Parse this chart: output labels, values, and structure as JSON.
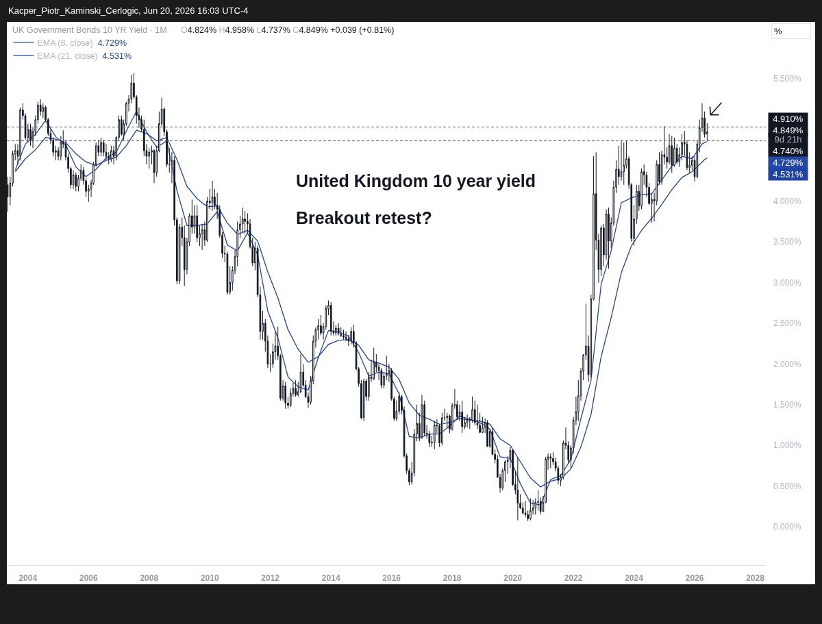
{
  "chart_data": {
    "type": "candlestick",
    "title": "UK Government Bonds 10 YR Yield · 1M",
    "x": [
      "2003-05",
      "2003-06",
      "2003-07",
      "2003-08",
      "2003-09",
      "2003-10",
      "2003-11",
      "2003-12",
      "2004-01",
      "2004-02",
      "2004-03",
      "2004-04",
      "2004-05",
      "2004-06",
      "2004-07",
      "2004-08",
      "2004-09",
      "2004-10",
      "2004-11",
      "2004-12",
      "2005-01",
      "2005-02",
      "2005-03",
      "2005-04",
      "2005-05",
      "2005-06",
      "2005-07",
      "2005-08",
      "2005-09",
      "2005-10",
      "2005-11",
      "2005-12",
      "2006-01",
      "2006-02",
      "2006-03",
      "2006-04",
      "2006-05",
      "2006-06",
      "2006-07",
      "2006-08",
      "2006-09",
      "2006-10",
      "2006-11",
      "2006-12",
      "2007-01",
      "2007-02",
      "2007-03",
      "2007-04",
      "2007-05",
      "2007-06",
      "2007-07",
      "2007-08",
      "2007-09",
      "2007-10",
      "2007-11",
      "2007-12",
      "2008-01",
      "2008-02",
      "2008-03",
      "2008-04",
      "2008-05",
      "2008-06",
      "2008-07",
      "2008-08",
      "2008-09",
      "2008-10",
      "2008-11",
      "2008-12",
      "2009-01",
      "2009-02",
      "2009-03",
      "2009-04",
      "2009-05",
      "2009-06",
      "2009-07",
      "2009-08",
      "2009-09",
      "2009-10",
      "2009-11",
      "2009-12",
      "2010-01",
      "2010-02",
      "2010-03",
      "2010-04",
      "2010-05",
      "2010-06",
      "2010-07",
      "2010-08",
      "2010-09",
      "2010-10",
      "2010-11",
      "2010-12",
      "2011-01",
      "2011-02",
      "2011-03",
      "2011-04",
      "2011-05",
      "2011-06",
      "2011-07",
      "2011-08",
      "2011-09",
      "2011-10",
      "2011-11",
      "2011-12",
      "2012-01",
      "2012-02",
      "2012-03",
      "2012-04",
      "2012-05",
      "2012-06",
      "2012-07",
      "2012-08",
      "2012-09",
      "2012-10",
      "2012-11",
      "2012-12",
      "2013-01",
      "2013-02",
      "2013-03",
      "2013-04",
      "2013-05",
      "2013-06",
      "2013-07",
      "2013-08",
      "2013-09",
      "2013-10",
      "2013-11",
      "2013-12",
      "2014-01",
      "2014-02",
      "2014-03",
      "2014-04",
      "2014-05",
      "2014-06",
      "2014-07",
      "2014-08",
      "2014-09",
      "2014-10",
      "2014-11",
      "2014-12",
      "2015-01",
      "2015-02",
      "2015-03",
      "2015-04",
      "2015-05",
      "2015-06",
      "2015-07",
      "2015-08",
      "2015-09",
      "2015-10",
      "2015-11",
      "2015-12",
      "2016-01",
      "2016-02",
      "2016-03",
      "2016-04",
      "2016-05",
      "2016-06",
      "2016-07",
      "2016-08",
      "2016-09",
      "2016-10",
      "2016-11",
      "2016-12",
      "2017-01",
      "2017-02",
      "2017-03",
      "2017-04",
      "2017-05",
      "2017-06",
      "2017-07",
      "2017-08",
      "2017-09",
      "2017-10",
      "2017-11",
      "2017-12",
      "2018-01",
      "2018-02",
      "2018-03",
      "2018-04",
      "2018-05",
      "2018-06",
      "2018-07",
      "2018-08",
      "2018-09",
      "2018-10",
      "2018-11",
      "2018-12",
      "2019-01",
      "2019-02",
      "2019-03",
      "2019-04",
      "2019-05",
      "2019-06",
      "2019-07",
      "2019-08",
      "2019-09",
      "2019-10",
      "2019-11",
      "2019-12",
      "2020-01",
      "2020-02",
      "2020-03",
      "2020-04",
      "2020-05",
      "2020-06",
      "2020-07",
      "2020-08",
      "2020-09",
      "2020-10",
      "2020-11",
      "2020-12",
      "2021-01",
      "2021-02",
      "2021-03",
      "2021-04",
      "2021-05",
      "2021-06",
      "2021-07",
      "2021-08",
      "2021-09",
      "2021-10",
      "2021-11",
      "2021-12",
      "2022-01",
      "2022-02",
      "2022-03",
      "2022-04",
      "2022-05",
      "2022-06",
      "2022-07",
      "2022-08",
      "2022-09",
      "2022-10",
      "2022-11",
      "2022-12",
      "2023-01",
      "2023-02",
      "2023-03",
      "2023-04",
      "2023-05",
      "2023-06",
      "2023-07",
      "2023-08",
      "2023-09",
      "2023-10",
      "2023-11",
      "2023-12",
      "2024-01",
      "2024-02",
      "2024-03",
      "2024-04",
      "2024-05",
      "2024-06",
      "2024-07",
      "2024-08",
      "2024-09",
      "2024-10",
      "2024-11",
      "2024-12",
      "2025-01",
      "2025-02",
      "2025-03",
      "2025-04",
      "2025-05",
      "2025-06",
      "2025-07",
      "2025-08",
      "2025-09",
      "2025-10",
      "2025-11",
      "2025-12",
      "2026-01",
      "2026-02",
      "2026-03",
      "2026-04",
      "2026-05",
      "2026-06"
    ],
    "ohlc": [
      [
        4.2,
        4.3,
        3.87,
        4.05
      ],
      [
        4.05,
        4.3,
        3.95,
        4.22
      ],
      [
        4.22,
        4.62,
        4.18,
        4.58
      ],
      [
        4.58,
        4.7,
        4.5,
        4.62
      ],
      [
        4.62,
        4.7,
        4.45,
        4.55
      ],
      [
        4.55,
        5.15,
        4.5,
        5.12
      ],
      [
        5.12,
        5.2,
        5.0,
        5.05
      ],
      [
        5.05,
        5.08,
        4.75,
        4.78
      ],
      [
        4.78,
        4.95,
        4.72,
        4.88
      ],
      [
        4.88,
        4.95,
        4.68,
        4.75
      ],
      [
        4.75,
        4.9,
        4.65,
        4.85
      ],
      [
        4.85,
        5.05,
        4.8,
        5.0
      ],
      [
        5.0,
        5.22,
        4.95,
        5.18
      ],
      [
        5.18,
        5.25,
        5.05,
        5.1
      ],
      [
        5.1,
        5.2,
        5.02,
        5.15
      ],
      [
        5.15,
        5.17,
        4.97,
        5.0
      ],
      [
        5.0,
        5.02,
        4.8,
        4.83
      ],
      [
        4.83,
        4.88,
        4.7,
        4.75
      ],
      [
        4.75,
        4.78,
        4.55,
        4.6
      ],
      [
        4.6,
        4.68,
        4.5,
        4.62
      ],
      [
        4.62,
        4.66,
        4.5,
        4.55
      ],
      [
        4.55,
        4.8,
        4.5,
        4.72
      ],
      [
        4.72,
        4.87,
        4.65,
        4.7
      ],
      [
        4.7,
        4.75,
        4.5,
        4.54
      ],
      [
        4.54,
        4.58,
        4.35,
        4.4
      ],
      [
        4.4,
        4.42,
        4.15,
        4.2
      ],
      [
        4.2,
        4.38,
        4.15,
        4.32
      ],
      [
        4.32,
        4.35,
        4.12,
        4.18
      ],
      [
        4.18,
        4.32,
        4.12,
        4.28
      ],
      [
        4.28,
        4.45,
        4.25,
        4.38
      ],
      [
        4.38,
        4.42,
        4.2,
        4.25
      ],
      [
        4.25,
        4.28,
        4.05,
        4.12
      ],
      [
        4.12,
        4.2,
        3.99,
        4.15
      ],
      [
        4.15,
        4.26,
        4.05,
        4.22
      ],
      [
        4.22,
        4.48,
        4.2,
        4.45
      ],
      [
        4.45,
        4.72,
        4.42,
        4.68
      ],
      [
        4.68,
        4.75,
        4.55,
        4.6
      ],
      [
        4.6,
        4.78,
        4.55,
        4.72
      ],
      [
        4.72,
        4.75,
        4.55,
        4.6
      ],
      [
        4.6,
        4.7,
        4.5,
        4.55
      ],
      [
        4.55,
        4.6,
        4.45,
        4.52
      ],
      [
        4.52,
        4.68,
        4.48,
        4.62
      ],
      [
        4.62,
        4.68,
        4.45,
        4.55
      ],
      [
        4.55,
        4.8,
        4.5,
        4.78
      ],
      [
        4.78,
        5.05,
        4.75,
        5.0
      ],
      [
        5.0,
        5.05,
        4.8,
        4.82
      ],
      [
        4.82,
        5.0,
        4.75,
        4.95
      ],
      [
        4.95,
        5.22,
        4.92,
        5.2
      ],
      [
        5.2,
        5.3,
        5.1,
        5.25
      ],
      [
        5.25,
        5.55,
        5.2,
        5.45
      ],
      [
        5.45,
        5.57,
        5.25,
        5.28
      ],
      [
        5.28,
        5.3,
        4.95,
        5.05
      ],
      [
        5.05,
        5.15,
        4.9,
        5.0
      ],
      [
        5.0,
        5.05,
        4.85,
        4.88
      ],
      [
        4.88,
        5.0,
        4.55,
        4.62
      ],
      [
        4.62,
        4.7,
        4.45,
        4.55
      ],
      [
        4.55,
        4.65,
        4.4,
        4.6
      ],
      [
        4.6,
        4.68,
        4.45,
        4.62
      ],
      [
        4.62,
        4.64,
        4.22,
        4.35
      ],
      [
        4.35,
        4.68,
        4.3,
        4.62
      ],
      [
        4.62,
        5.1,
        4.6,
        4.95
      ],
      [
        4.95,
        5.27,
        4.92,
        5.13
      ],
      [
        5.13,
        5.15,
        4.8,
        4.85
      ],
      [
        4.85,
        4.88,
        4.42,
        4.45
      ],
      [
        4.45,
        4.65,
        4.35,
        4.45
      ],
      [
        4.45,
        4.6,
        4.22,
        4.5
      ],
      [
        4.5,
        4.55,
        3.7,
        3.77
      ],
      [
        3.77,
        3.8,
        2.98,
        3.02
      ],
      [
        3.02,
        3.72,
        2.98,
        3.68
      ],
      [
        3.68,
        3.8,
        3.45,
        3.55
      ],
      [
        3.55,
        3.7,
        2.96,
        3.16
      ],
      [
        3.16,
        3.55,
        3.1,
        3.5
      ],
      [
        3.5,
        3.85,
        3.45,
        3.82
      ],
      [
        3.82,
        4.02,
        3.6,
        3.68
      ],
      [
        3.68,
        3.95,
        3.6,
        3.82
      ],
      [
        3.82,
        3.95,
        3.5,
        3.55
      ],
      [
        3.55,
        3.7,
        3.45,
        3.6
      ],
      [
        3.6,
        3.72,
        3.4,
        3.65
      ],
      [
        3.65,
        3.75,
        3.45,
        3.52
      ],
      [
        3.52,
        4.05,
        3.5,
        4.0
      ],
      [
        4.0,
        4.15,
        3.9,
        3.98
      ],
      [
        3.98,
        4.25,
        3.88,
        4.05
      ],
      [
        4.05,
        4.15,
        3.9,
        3.95
      ],
      [
        3.95,
        4.1,
        3.78,
        3.9
      ],
      [
        3.9,
        3.95,
        3.55,
        3.58
      ],
      [
        3.58,
        3.62,
        3.3,
        3.36
      ],
      [
        3.36,
        3.45,
        3.25,
        3.35
      ],
      [
        3.35,
        3.38,
        2.85,
        2.88
      ],
      [
        2.88,
        3.2,
        2.85,
        3.0
      ],
      [
        3.0,
        3.2,
        2.9,
        3.15
      ],
      [
        3.15,
        3.4,
        3.1,
        3.32
      ],
      [
        3.32,
        3.75,
        3.2,
        3.65
      ],
      [
        3.65,
        3.82,
        3.55,
        3.72
      ],
      [
        3.72,
        3.92,
        3.62,
        3.78
      ],
      [
        3.78,
        3.88,
        3.6,
        3.75
      ],
      [
        3.75,
        3.85,
        3.6,
        3.72
      ],
      [
        3.72,
        3.78,
        3.42,
        3.44
      ],
      [
        3.44,
        3.55,
        3.2,
        3.24
      ],
      [
        3.24,
        3.5,
        3.15,
        3.42
      ],
      [
        3.42,
        3.45,
        2.82,
        2.85
      ],
      [
        2.85,
        2.95,
        2.3,
        2.4
      ],
      [
        2.4,
        2.65,
        2.3,
        2.5
      ],
      [
        2.5,
        2.55,
        2.15,
        2.28
      ],
      [
        2.28,
        2.35,
        1.95,
        2.0
      ],
      [
        2.0,
        2.12,
        1.9,
        2.0
      ],
      [
        2.0,
        2.25,
        1.95,
        2.15
      ],
      [
        2.15,
        2.4,
        2.05,
        2.22
      ],
      [
        2.22,
        2.46,
        2.05,
        2.1
      ],
      [
        2.1,
        2.12,
        1.55,
        1.58
      ],
      [
        1.58,
        1.8,
        1.55,
        1.73
      ],
      [
        1.73,
        1.78,
        1.45,
        1.52
      ],
      [
        1.52,
        1.6,
        1.45,
        1.49
      ],
      [
        1.49,
        1.7,
        1.47,
        1.64
      ],
      [
        1.64,
        1.77,
        1.6,
        1.7
      ],
      [
        1.7,
        1.8,
        1.6,
        1.62
      ],
      [
        1.62,
        1.78,
        1.6,
        1.66
      ],
      [
        1.66,
        2.12,
        1.64,
        1.9
      ],
      [
        1.9,
        2.0,
        1.72,
        1.74
      ],
      [
        1.74,
        1.8,
        1.58,
        1.6
      ],
      [
        1.6,
        1.65,
        1.46,
        1.53
      ],
      [
        1.53,
        1.85,
        1.5,
        1.79
      ],
      [
        1.79,
        2.35,
        1.75,
        2.28
      ],
      [
        2.28,
        2.45,
        2.2,
        2.42
      ],
      [
        2.42,
        2.55,
        2.3,
        2.47
      ],
      [
        2.47,
        2.6,
        2.35,
        2.38
      ],
      [
        2.38,
        2.5,
        2.3,
        2.46
      ],
      [
        2.46,
        2.72,
        2.42,
        2.68
      ],
      [
        2.68,
        2.78,
        2.6,
        2.72
      ],
      [
        2.72,
        2.76,
        2.35,
        2.4
      ],
      [
        2.4,
        2.52,
        2.35,
        2.38
      ],
      [
        2.38,
        2.48,
        2.34,
        2.44
      ],
      [
        2.44,
        2.5,
        2.35,
        2.37
      ],
      [
        2.37,
        2.45,
        2.33,
        2.35
      ],
      [
        2.35,
        2.42,
        2.3,
        2.33
      ],
      [
        2.33,
        2.4,
        2.28,
        2.31
      ],
      [
        2.31,
        2.36,
        2.22,
        2.28
      ],
      [
        2.28,
        2.45,
        2.24,
        2.4
      ],
      [
        2.4,
        2.48,
        2.2,
        2.26
      ],
      [
        2.26,
        2.28,
        1.92,
        1.94
      ],
      [
        1.94,
        1.96,
        1.72,
        1.76
      ],
      [
        1.76,
        1.8,
        1.32,
        1.34
      ],
      [
        1.34,
        1.82,
        1.3,
        1.79
      ],
      [
        1.79,
        1.82,
        1.55,
        1.6
      ],
      [
        1.6,
        1.9,
        1.55,
        1.84
      ],
      [
        1.84,
        2.05,
        1.78,
        1.82
      ],
      [
        1.82,
        2.2,
        1.8,
        2.02
      ],
      [
        2.02,
        2.12,
        1.9,
        1.96
      ],
      [
        1.96,
        2.0,
        1.8,
        1.92
      ],
      [
        1.92,
        1.95,
        1.7,
        1.74
      ],
      [
        1.74,
        1.9,
        1.7,
        1.85
      ],
      [
        1.85,
        2.1,
        1.8,
        1.88
      ],
      [
        1.88,
        2.0,
        1.78,
        1.92
      ],
      [
        1.92,
        1.95,
        1.55,
        1.57
      ],
      [
        1.57,
        1.6,
        1.3,
        1.33
      ],
      [
        1.33,
        1.55,
        1.3,
        1.42
      ],
      [
        1.42,
        1.65,
        1.38,
        1.6
      ],
      [
        1.6,
        1.62,
        1.38,
        1.43
      ],
      [
        1.43,
        1.48,
        0.85,
        0.87
      ],
      [
        0.87,
        0.9,
        0.65,
        0.69
      ],
      [
        0.69,
        0.72,
        0.51,
        0.55
      ],
      [
        0.55,
        0.8,
        0.52,
        0.66
      ],
      [
        0.66,
        1.2,
        0.62,
        1.14
      ],
      [
        1.14,
        1.5,
        1.05,
        1.27
      ],
      [
        1.27,
        1.4,
        1.05,
        1.1
      ],
      [
        1.1,
        1.62,
        1.08,
        1.5
      ],
      [
        1.5,
        1.55,
        1.12,
        1.15
      ],
      [
        1.15,
        1.25,
        1.08,
        1.14
      ],
      [
        1.14,
        1.18,
        0.98,
        1.03
      ],
      [
        1.03,
        1.12,
        0.98,
        1.04
      ],
      [
        1.04,
        1.3,
        0.95,
        1.25
      ],
      [
        1.25,
        1.32,
        1.15,
        1.24
      ],
      [
        1.24,
        1.26,
        0.98,
        1.03
      ],
      [
        1.03,
        1.4,
        1.0,
        1.34
      ],
      [
        1.34,
        1.45,
        1.3,
        1.34
      ],
      [
        1.34,
        1.4,
        1.22,
        1.36
      ],
      [
        1.36,
        1.38,
        1.15,
        1.2
      ],
      [
        1.2,
        1.52,
        1.18,
        1.49
      ],
      [
        1.49,
        1.69,
        1.45,
        1.5
      ],
      [
        1.5,
        1.55,
        1.32,
        1.35
      ],
      [
        1.35,
        1.5,
        1.3,
        1.41
      ],
      [
        1.41,
        1.55,
        1.15,
        1.23
      ],
      [
        1.23,
        1.35,
        1.2,
        1.28
      ],
      [
        1.28,
        1.38,
        1.22,
        1.32
      ],
      [
        1.32,
        1.35,
        1.2,
        1.31
      ],
      [
        1.31,
        1.6,
        1.28,
        1.44
      ],
      [
        1.44,
        1.55,
        1.25,
        1.28
      ],
      [
        1.28,
        1.5,
        1.2,
        1.25
      ],
      [
        1.25,
        1.4,
        1.15,
        1.16
      ],
      [
        1.16,
        1.35,
        1.15,
        1.22
      ],
      [
        1.22,
        1.33,
        1.15,
        1.28
      ],
      [
        1.28,
        1.31,
        0.98,
        0.99
      ],
      [
        0.99,
        1.2,
        0.97,
        1.17
      ],
      [
        1.17,
        1.22,
        0.88,
        0.89
      ],
      [
        0.89,
        0.95,
        0.78,
        0.83
      ],
      [
        0.83,
        0.88,
        0.6,
        0.61
      ],
      [
        0.61,
        0.65,
        0.42,
        0.48
      ],
      [
        0.48,
        0.72,
        0.45,
        0.69
      ],
      [
        0.69,
        0.82,
        0.55,
        0.8
      ],
      [
        0.8,
        0.87,
        0.65,
        0.82
      ],
      [
        0.82,
        0.98,
        0.72,
        0.94
      ],
      [
        0.94,
        0.95,
        0.5,
        0.52
      ],
      [
        0.52,
        0.68,
        0.4,
        0.45
      ],
      [
        0.45,
        0.85,
        0.08,
        0.29
      ],
      [
        0.29,
        0.4,
        0.22,
        0.23
      ],
      [
        0.23,
        0.3,
        0.15,
        0.17
      ],
      [
        0.17,
        0.32,
        0.12,
        0.15
      ],
      [
        0.15,
        0.2,
        0.07,
        0.1
      ],
      [
        0.1,
        0.35,
        0.08,
        0.2
      ],
      [
        0.2,
        0.33,
        0.15,
        0.23
      ],
      [
        0.23,
        0.35,
        0.15,
        0.3
      ],
      [
        0.3,
        0.45,
        0.2,
        0.31
      ],
      [
        0.31,
        0.36,
        0.15,
        0.19
      ],
      [
        0.19,
        0.38,
        0.18,
        0.3
      ],
      [
        0.3,
        0.86,
        0.29,
        0.83
      ],
      [
        0.83,
        0.9,
        0.7,
        0.86
      ],
      [
        0.86,
        0.9,
        0.72,
        0.84
      ],
      [
        0.84,
        0.92,
        0.76,
        0.8
      ],
      [
        0.8,
        0.85,
        0.68,
        0.72
      ],
      [
        0.72,
        0.75,
        0.52,
        0.57
      ],
      [
        0.57,
        0.65,
        0.5,
        0.61
      ],
      [
        0.61,
        1.06,
        0.58,
        1.03
      ],
      [
        1.03,
        1.22,
        0.95,
        1.0
      ],
      [
        1.0,
        1.05,
        0.78,
        0.82
      ],
      [
        0.82,
        1.0,
        0.72,
        0.97
      ],
      [
        0.97,
        1.35,
        0.9,
        1.31
      ],
      [
        1.31,
        1.6,
        1.25,
        1.41
      ],
      [
        1.41,
        1.8,
        1.3,
        1.61
      ],
      [
        1.61,
        1.95,
        1.55,
        1.91
      ],
      [
        1.91,
        2.12,
        1.8,
        2.11
      ],
      [
        2.11,
        2.74,
        2.05,
        2.22
      ],
      [
        2.22,
        2.35,
        1.78,
        1.87
      ],
      [
        1.87,
        2.85,
        1.84,
        2.8
      ],
      [
        2.8,
        4.55,
        2.78,
        4.09
      ],
      [
        4.09,
        4.6,
        3.4,
        3.52
      ],
      [
        3.52,
        3.6,
        3.0,
        3.16
      ],
      [
        3.16,
        3.7,
        3.08,
        3.67
      ],
      [
        3.67,
        3.72,
        3.2,
        3.34
      ],
      [
        3.34,
        3.9,
        3.28,
        3.84
      ],
      [
        3.84,
        3.92,
        3.17,
        3.51
      ],
      [
        3.51,
        3.8,
        3.42,
        3.73
      ],
      [
        3.73,
        4.25,
        3.7,
        4.17
      ],
      [
        4.17,
        4.5,
        4.1,
        4.39
      ],
      [
        4.39,
        4.68,
        4.2,
        4.3
      ],
      [
        4.3,
        4.75,
        4.25,
        4.36
      ],
      [
        4.36,
        4.72,
        4.2,
        4.44
      ],
      [
        4.44,
        4.74,
        4.4,
        4.52
      ],
      [
        4.52,
        4.55,
        4.15,
        4.2
      ],
      [
        4.2,
        4.22,
        3.5,
        3.54
      ],
      [
        3.54,
        3.95,
        3.45,
        3.78
      ],
      [
        3.78,
        4.2,
        3.72,
        4.12
      ],
      [
        4.12,
        4.2,
        3.88,
        3.94
      ],
      [
        3.94,
        4.4,
        3.9,
        4.36
      ],
      [
        4.36,
        4.45,
        4.2,
        4.32
      ],
      [
        4.32,
        4.36,
        4.05,
        4.17
      ],
      [
        4.17,
        4.22,
        3.95,
        3.97
      ],
      [
        3.97,
        4.1,
        3.73,
        4.02
      ],
      [
        4.02,
        4.1,
        3.75,
        4.0
      ],
      [
        4.0,
        4.5,
        3.95,
        4.45
      ],
      [
        4.45,
        4.6,
        4.2,
        4.24
      ],
      [
        4.24,
        4.62,
        4.2,
        4.57
      ],
      [
        4.57,
        4.92,
        4.45,
        4.54
      ],
      [
        4.54,
        4.66,
        4.4,
        4.48
      ],
      [
        4.48,
        4.82,
        4.45,
        4.68
      ],
      [
        4.68,
        4.8,
        4.35,
        4.44
      ],
      [
        4.44,
        4.78,
        4.42,
        4.65
      ],
      [
        4.65,
        4.7,
        4.45,
        4.48
      ],
      [
        4.48,
        4.66,
        4.42,
        4.57
      ],
      [
        4.57,
        4.82,
        4.5,
        4.72
      ],
      [
        4.72,
        4.86,
        4.55,
        4.7
      ],
      [
        4.7,
        4.75,
        4.38,
        4.41
      ],
      [
        4.41,
        4.6,
        4.35,
        4.44
      ],
      [
        4.44,
        4.55,
        4.38,
        4.5
      ],
      [
        4.5,
        4.55,
        4.24,
        4.3
      ],
      [
        4.3,
        4.75,
        4.28,
        4.7
      ],
      [
        4.7,
        5.0,
        4.6,
        4.9
      ],
      [
        4.9,
        5.2,
        4.85,
        5.02
      ],
      [
        5.02,
        5.1,
        4.78,
        4.82
      ],
      [
        4.824,
        4.958,
        4.737,
        4.849
      ]
    ],
    "series": [
      {
        "name": "EMA (8, close)",
        "type": "line",
        "color": "#2448a8",
        "x": [
          "2003-08",
          "2003-12",
          "2004-04",
          "2004-08",
          "2004-12",
          "2005-04",
          "2005-08",
          "2005-12",
          "2006-04",
          "2006-08",
          "2006-12",
          "2007-04",
          "2007-08",
          "2007-12",
          "2008-04",
          "2008-08",
          "2008-12",
          "2009-04",
          "2009-08",
          "2009-12",
          "2010-04",
          "2010-08",
          "2010-12",
          "2011-04",
          "2011-08",
          "2011-12",
          "2012-04",
          "2012-08",
          "2012-12",
          "2013-04",
          "2013-08",
          "2013-12",
          "2014-04",
          "2014-08",
          "2014-12",
          "2015-04",
          "2015-08",
          "2015-12",
          "2016-04",
          "2016-08",
          "2016-12",
          "2017-04",
          "2017-08",
          "2017-12",
          "2018-04",
          "2018-08",
          "2018-12",
          "2019-04",
          "2019-08",
          "2019-12",
          "2020-04",
          "2020-08",
          "2020-12",
          "2021-04",
          "2021-08",
          "2021-12",
          "2022-04",
          "2022-08",
          "2022-12",
          "2023-04",
          "2023-08",
          "2023-12",
          "2024-04",
          "2024-08",
          "2024-12",
          "2025-04",
          "2025-08",
          "2025-12",
          "2026-04",
          "2026-05",
          "2026-06"
        ],
        "values": [
          4.38,
          4.7,
          4.82,
          4.99,
          4.79,
          4.69,
          4.42,
          4.3,
          4.39,
          4.53,
          4.6,
          4.86,
          5.1,
          4.85,
          4.66,
          4.74,
          4.13,
          3.7,
          3.7,
          3.72,
          3.87,
          3.46,
          3.39,
          3.61,
          3.34,
          2.65,
          2.32,
          1.84,
          1.72,
          1.68,
          2.08,
          2.41,
          2.4,
          2.34,
          2.14,
          1.85,
          1.9,
          1.88,
          1.63,
          1.11,
          1.09,
          1.14,
          1.14,
          1.24,
          1.36,
          1.32,
          1.28,
          1.2,
          0.86,
          0.84,
          0.53,
          0.29,
          0.27,
          0.58,
          0.63,
          0.83,
          1.33,
          1.8,
          2.98,
          3.39,
          3.98,
          4.04,
          4.08,
          4.09,
          4.26,
          4.43,
          4.55,
          4.52,
          4.7,
          4.72,
          4.729
        ]
      },
      {
        "name": "EMA (21, close)",
        "type": "line",
        "color": "#1f43a3",
        "x": [
          "2003-08",
          "2003-12",
          "2004-04",
          "2004-08",
          "2004-12",
          "2005-04",
          "2005-08",
          "2005-12",
          "2006-04",
          "2006-08",
          "2006-12",
          "2007-04",
          "2007-08",
          "2007-12",
          "2008-04",
          "2008-08",
          "2008-12",
          "2009-04",
          "2009-08",
          "2009-12",
          "2010-04",
          "2010-08",
          "2010-12",
          "2011-04",
          "2011-08",
          "2011-12",
          "2012-04",
          "2012-08",
          "2012-12",
          "2013-04",
          "2013-08",
          "2013-12",
          "2014-04",
          "2014-08",
          "2014-12",
          "2015-04",
          "2015-08",
          "2015-12",
          "2016-04",
          "2016-08",
          "2016-12",
          "2017-04",
          "2017-08",
          "2017-12",
          "2018-04",
          "2018-08",
          "2018-12",
          "2019-04",
          "2019-08",
          "2019-12",
          "2020-04",
          "2020-08",
          "2020-12",
          "2021-04",
          "2021-08",
          "2021-12",
          "2022-04",
          "2022-08",
          "2022-12",
          "2023-04",
          "2023-08",
          "2023-12",
          "2024-04",
          "2024-08",
          "2024-12",
          "2025-04",
          "2025-08",
          "2025-12",
          "2026-04",
          "2026-05",
          "2026-06"
        ],
        "values": [
          4.36,
          4.52,
          4.63,
          4.78,
          4.76,
          4.72,
          4.58,
          4.48,
          4.44,
          4.5,
          4.54,
          4.68,
          4.87,
          4.83,
          4.74,
          4.78,
          4.51,
          4.18,
          4.03,
          3.93,
          3.94,
          3.73,
          3.59,
          3.64,
          3.51,
          3.13,
          2.81,
          2.42,
          2.18,
          2.02,
          2.09,
          2.24,
          2.29,
          2.3,
          2.23,
          2.05,
          2.01,
          1.96,
          1.81,
          1.52,
          1.37,
          1.32,
          1.26,
          1.28,
          1.33,
          1.31,
          1.3,
          1.26,
          1.08,
          1.0,
          0.8,
          0.6,
          0.49,
          0.56,
          0.59,
          0.71,
          0.98,
          1.38,
          2.09,
          2.57,
          3.12,
          3.45,
          3.64,
          3.79,
          3.96,
          4.14,
          4.29,
          4.36,
          4.48,
          4.51,
          4.531
        ]
      }
    ],
    "xlim": [
      "2003-04-22",
      "2028-05-08"
    ],
    "xticks": [
      {
        "value": "2004-01",
        "label": "2004"
      },
      {
        "value": "2006-01",
        "label": "2006"
      },
      {
        "value": "2008-01",
        "label": "2008"
      },
      {
        "value": "2010-01",
        "label": "2010"
      },
      {
        "value": "2012-01",
        "label": "2012"
      },
      {
        "value": "2014-01",
        "label": "2014"
      },
      {
        "value": "2016-01",
        "label": "2016"
      },
      {
        "value": "2018-01",
        "label": "2018"
      },
      {
        "value": "2020-01",
        "label": "2020"
      },
      {
        "value": "2022-01",
        "label": "2022"
      },
      {
        "value": "2024-01",
        "label": "2024"
      },
      {
        "value": "2026-01",
        "label": "2026"
      },
      {
        "value": "2028-01",
        "label": "2028"
      }
    ],
    "ylim": [
      -0.47,
      6.2
    ],
    "yticks": [
      {
        "value": 0,
        "label": "0.000%"
      },
      {
        "value": 0.5,
        "label": "0.500%"
      },
      {
        "value": 1,
        "label": "1.000%"
      },
      {
        "value": 1.5,
        "label": "1.500%"
      },
      {
        "value": 2,
        "label": "2.000%"
      },
      {
        "value": 2.5,
        "label": "2.500%"
      },
      {
        "value": 3,
        "label": "3.000%"
      },
      {
        "value": 3.5,
        "label": "3.500%"
      },
      {
        "value": 4,
        "label": "4.000%"
      },
      {
        "value": 5.5,
        "label": "5.500%"
      }
    ],
    "ref_lines": [
      {
        "axis": "y",
        "value": 4.91,
        "label": "4.910%",
        "color": "#5d606b",
        "line_style": "dashed"
      },
      {
        "axis": "y",
        "value": 4.74,
        "label": "4.740%",
        "color": "#5d606b",
        "line_style": "dashed"
      }
    ],
    "annotations": [
      "Kacper_Piotr_Kaminski_Cerlogic, Jun 20, 2026 16:03 UTC-4",
      "O4.824% H4.958% L4.737% C4.849% +0.039 (+0.81%)",
      "United Kingdom 10 year yield",
      "Breakout retest?",
      "4.849%",
      "9d 21h",
      "4.729%",
      "4.531%",
      "%"
    ],
    "legend": "top left",
    "grid": false
  }
}
